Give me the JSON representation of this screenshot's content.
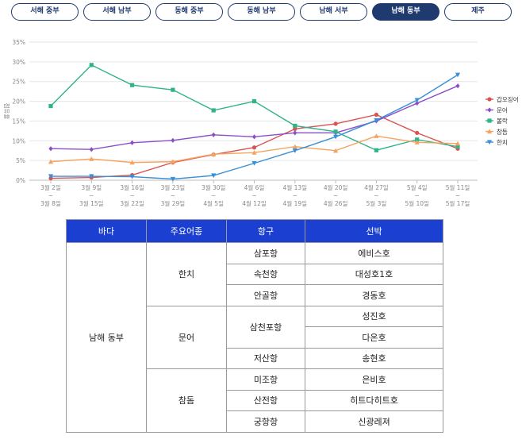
{
  "tabs": [
    "서해 중부",
    "서해 남부",
    "동해 중부",
    "동해 남부",
    "남해 서부",
    "남해 동부",
    "제주"
  ],
  "active_tab": 5,
  "chart_data": {
    "type": "line",
    "ylabel": "점유율",
    "ylim": [
      0,
      35
    ],
    "yticks": [
      "0%",
      "5%",
      "10%",
      "15%",
      "20%",
      "25%",
      "30%",
      "35%"
    ],
    "x_top": [
      "3월 2일",
      "3월 9일",
      "3월 16일",
      "3월 23일",
      "3월 30일",
      "4월 6일",
      "4월 13일",
      "4월 20일",
      "4월 27일",
      "5월 4일",
      "5월 11일"
    ],
    "x_bottom": [
      "3월 8일",
      "3월 15일",
      "3월 22일",
      "3월 29일",
      "4월 5일",
      "4월 12일",
      "4월 19일",
      "4월 26일",
      "5월 3일",
      "5월 10일",
      "5월 17일"
    ],
    "x_sep": "~",
    "legend_position": "right",
    "series": [
      {
        "name": "갑오징어",
        "color": "#d9534f",
        "marker": "circle",
        "values": [
          0.5,
          0.7,
          1.3,
          4.5,
          6.5,
          8.3,
          13.0,
          14.3,
          16.6,
          12.0,
          8.0
        ]
      },
      {
        "name": "문어",
        "color": "#8a4fc7",
        "marker": "diamond",
        "values": [
          8.0,
          7.8,
          9.5,
          10.1,
          11.5,
          11.0,
          12.0,
          12.0,
          15.0,
          19.5,
          23.9
        ]
      },
      {
        "name": "볼락",
        "color": "#2fb38a",
        "marker": "square",
        "values": [
          18.8,
          29.2,
          24.1,
          22.9,
          17.7,
          20.0,
          13.8,
          12.3,
          7.6,
          10.3,
          8.5
        ]
      },
      {
        "name": "참돔",
        "color": "#f4a460",
        "marker": "triangle",
        "values": [
          4.7,
          5.4,
          4.5,
          4.7,
          6.6,
          7.0,
          8.5,
          7.5,
          11.2,
          9.6,
          9.3
        ]
      },
      {
        "name": "한치",
        "color": "#3a8fd6",
        "marker": "triangle-down",
        "values": [
          1.0,
          1.0,
          0.9,
          0.3,
          1.2,
          4.3,
          7.5,
          11.0,
          15.2,
          20.3,
          26.7
        ]
      }
    ]
  },
  "table": {
    "headers": [
      "바다",
      "주요어종",
      "항구",
      "선박"
    ],
    "sea": "남해 동부",
    "groups": [
      {
        "species": "한치",
        "ports": [
          {
            "name": "삼포항",
            "ships": [
              "에비스호"
            ]
          },
          {
            "name": "속천항",
            "ships": [
              "대성호1호"
            ]
          },
          {
            "name": "안골항",
            "ships": [
              "경동호"
            ]
          }
        ]
      },
      {
        "species": "문어",
        "ports": [
          {
            "name": "삼천포항",
            "ships": [
              "성진호",
              "다온호"
            ]
          },
          {
            "name": "저산항",
            "ships": [
              "송현호"
            ]
          }
        ]
      },
      {
        "species": "참돔",
        "ports": [
          {
            "name": "미조항",
            "ships": [
              "은비호"
            ]
          },
          {
            "name": "산전항",
            "ships": [
              "히트다히트호"
            ]
          },
          {
            "name": "궁항항",
            "ships": [
              "신광레져"
            ]
          }
        ]
      }
    ]
  }
}
